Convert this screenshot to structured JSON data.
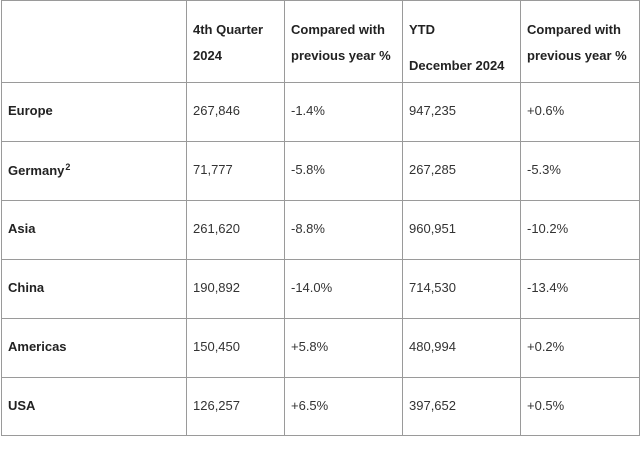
{
  "headers": {
    "region": "",
    "q4": [
      "4th Quarter",
      "2024"
    ],
    "q4_change": [
      "Compared with",
      "previous year %"
    ],
    "ytd": [
      "YTD",
      "December 2024"
    ],
    "ytd_change": [
      "Compared with",
      "previous year %"
    ]
  },
  "rows": [
    {
      "region": "Europe",
      "sup": "",
      "q4": "267,846",
      "q4_change": "-1.4%",
      "ytd": "947,235",
      "ytd_change": "+0.6%"
    },
    {
      "region": "Germany",
      "sup": "2",
      "q4": "71,777",
      "q4_change": "-5.8%",
      "ytd": "267,285",
      "ytd_change": "-5.3%"
    },
    {
      "region": "Asia",
      "sup": "",
      "q4": "261,620",
      "q4_change": "-8.8%",
      "ytd": "960,951",
      "ytd_change": "-10.2%"
    },
    {
      "region": "China",
      "sup": "",
      "q4": "190,892",
      "q4_change": "-14.0%",
      "ytd": "714,530",
      "ytd_change": "-13.4%"
    },
    {
      "region": "Americas",
      "sup": "",
      "q4": "150,450",
      "q4_change": "+5.8%",
      "ytd": "480,994",
      "ytd_change": "+0.2%"
    },
    {
      "region": "USA",
      "sup": "",
      "q4": "126,257",
      "q4_change": "+6.5%",
      "ytd": "397,652",
      "ytd_change": "+0.5%"
    }
  ]
}
